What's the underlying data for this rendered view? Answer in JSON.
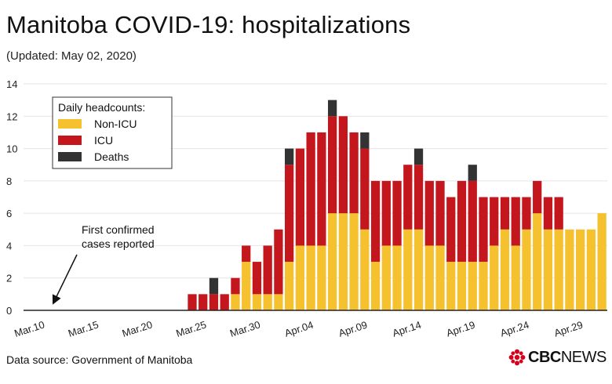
{
  "header": {
    "title": "Manitoba COVID-19: hospitalizations",
    "subtitle": "(Updated: May 02, 2020)"
  },
  "footer": {
    "source": "Data source: Government of Manitoba",
    "brand_bold": "CBC",
    "brand_light": "NEWS"
  },
  "colors": {
    "non_icu": "#f5c12e",
    "icu": "#c4171d",
    "deaths": "#333333",
    "grid": "#e4e4e4",
    "axis": "#222222"
  },
  "chart_data": {
    "type": "bar",
    "stacked": true,
    "title": "Manitoba COVID-19: hospitalizations",
    "subtitle": "(Updated: May 02, 2020)",
    "xlabel": "",
    "ylabel": "",
    "ylim": [
      0,
      14
    ],
    "yticks": [
      0,
      2,
      4,
      6,
      8,
      10,
      12,
      14
    ],
    "grid": true,
    "legend": {
      "title": "Daily headcounts:",
      "position": "top-left"
    },
    "xtick_labels": [
      "Mar.10",
      "Mar.15",
      "Mar.20",
      "Mar.25",
      "Mar.30",
      "Apr.04",
      "Apr.09",
      "Apr.14",
      "Apr.19",
      "Apr.24",
      "Apr.29"
    ],
    "categories": [
      "Mar.10",
      "Mar.11",
      "Mar.12",
      "Mar.13",
      "Mar.14",
      "Mar.15",
      "Mar.16",
      "Mar.17",
      "Mar.18",
      "Mar.19",
      "Mar.20",
      "Mar.21",
      "Mar.22",
      "Mar.23",
      "Mar.24",
      "Mar.25",
      "Mar.26",
      "Mar.27",
      "Mar.28",
      "Mar.29",
      "Mar.30",
      "Mar.31",
      "Apr.01",
      "Apr.02",
      "Apr.03",
      "Apr.04",
      "Apr.05",
      "Apr.06",
      "Apr.07",
      "Apr.08",
      "Apr.09",
      "Apr.10",
      "Apr.11",
      "Apr.12",
      "Apr.13",
      "Apr.14",
      "Apr.15",
      "Apr.16",
      "Apr.17",
      "Apr.18",
      "Apr.19",
      "Apr.20",
      "Apr.21",
      "Apr.22",
      "Apr.23",
      "Apr.24",
      "Apr.25",
      "Apr.26",
      "Apr.27",
      "Apr.28",
      "Apr.29",
      "Apr.30",
      "May.01",
      "May.02"
    ],
    "series": [
      {
        "name": "Non-ICU",
        "values": [
          0,
          0,
          0,
          0,
          0,
          0,
          0,
          0,
          0,
          0,
          0,
          0,
          0,
          0,
          0,
          0,
          0,
          0,
          0,
          1,
          3,
          1,
          1,
          1,
          3,
          4,
          4,
          4,
          6,
          6,
          6,
          5,
          3,
          4,
          4,
          5,
          5,
          4,
          4,
          3,
          3,
          3,
          3,
          4,
          5,
          4,
          5,
          6,
          5,
          5,
          5,
          5,
          5,
          6
        ]
      },
      {
        "name": "ICU",
        "values": [
          0,
          0,
          0,
          0,
          0,
          0,
          0,
          0,
          0,
          0,
          0,
          0,
          0,
          0,
          0,
          1,
          1,
          1,
          1,
          1,
          1,
          2,
          3,
          4,
          6,
          6,
          7,
          7,
          6,
          6,
          5,
          5,
          5,
          4,
          4,
          4,
          4,
          4,
          4,
          4,
          5,
          5,
          4,
          3,
          2,
          3,
          2,
          2,
          2,
          2,
          0,
          0,
          0,
          0
        ]
      },
      {
        "name": "Deaths",
        "values": [
          0,
          0,
          0,
          0,
          0,
          0,
          0,
          0,
          0,
          0,
          0,
          0,
          0,
          0,
          0,
          0,
          0,
          1,
          0,
          0,
          0,
          0,
          0,
          0,
          1,
          0,
          0,
          0,
          1,
          0,
          0,
          1,
          0,
          0,
          0,
          0,
          1,
          0,
          0,
          0,
          0,
          1,
          0,
          0,
          0,
          0,
          0,
          0,
          0,
          0,
          0,
          0,
          0,
          0
        ]
      }
    ],
    "annotations": [
      {
        "text_lines": [
          "First confirmed",
          "cases reported"
        ],
        "category": "Mar.12"
      }
    ]
  }
}
